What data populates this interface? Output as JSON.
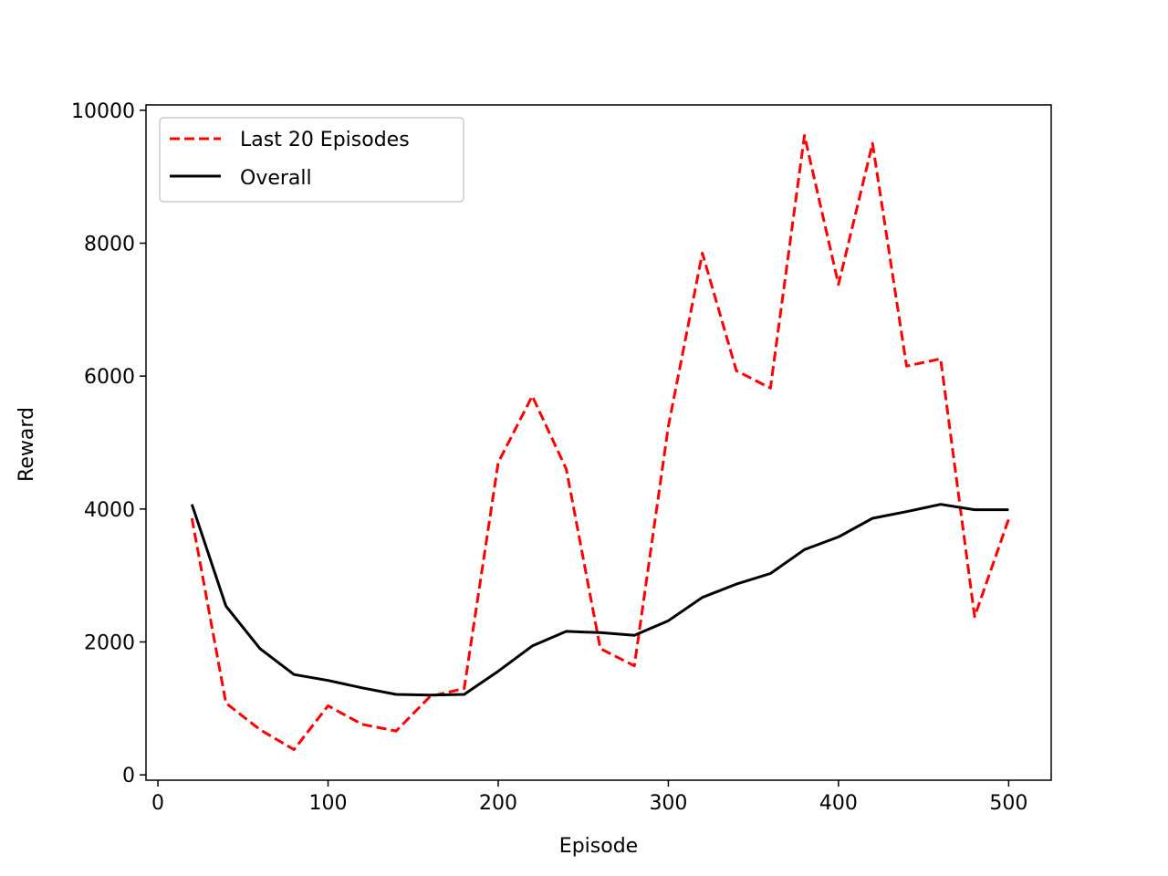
{
  "chart_data": {
    "type": "line",
    "title": "",
    "xlabel": "Episode",
    "ylabel": "Reward",
    "xlim": [
      -7,
      525
    ],
    "ylim": [
      -80,
      10080
    ],
    "xticks": [
      0,
      100,
      200,
      300,
      400,
      500
    ],
    "yticks": [
      0,
      2000,
      4000,
      6000,
      8000,
      10000
    ],
    "grid": false,
    "legend_position": "upper-left",
    "series": [
      {
        "name": "Last 20 Episodes",
        "color": "#ff0000",
        "style": "dashed",
        "x": [
          20,
          40,
          60,
          80,
          100,
          120,
          140,
          160,
          180,
          200,
          220,
          240,
          260,
          280,
          300,
          320,
          340,
          360,
          380,
          400,
          420,
          440,
          460,
          480,
          500
        ],
        "values": [
          3860,
          1080,
          680,
          380,
          1040,
          760,
          660,
          1180,
          1300,
          4700,
          5700,
          4600,
          1900,
          1640,
          5250,
          7850,
          6080,
          5820,
          9620,
          7380,
          9500,
          6150,
          6260,
          2380,
          3850
        ]
      },
      {
        "name": "Overall",
        "color": "#000000",
        "style": "solid",
        "x": [
          20,
          40,
          60,
          80,
          100,
          120,
          140,
          160,
          180,
          200,
          220,
          240,
          260,
          280,
          300,
          320,
          340,
          360,
          380,
          400,
          420,
          440,
          460,
          480,
          500
        ],
        "values": [
          4070,
          2540,
          1900,
          1510,
          1420,
          1310,
          1210,
          1200,
          1210,
          1560,
          1940,
          2160,
          2140,
          2100,
          2320,
          2670,
          2870,
          3030,
          3390,
          3580,
          3860,
          3960,
          4070,
          3990,
          3990
        ]
      }
    ]
  }
}
